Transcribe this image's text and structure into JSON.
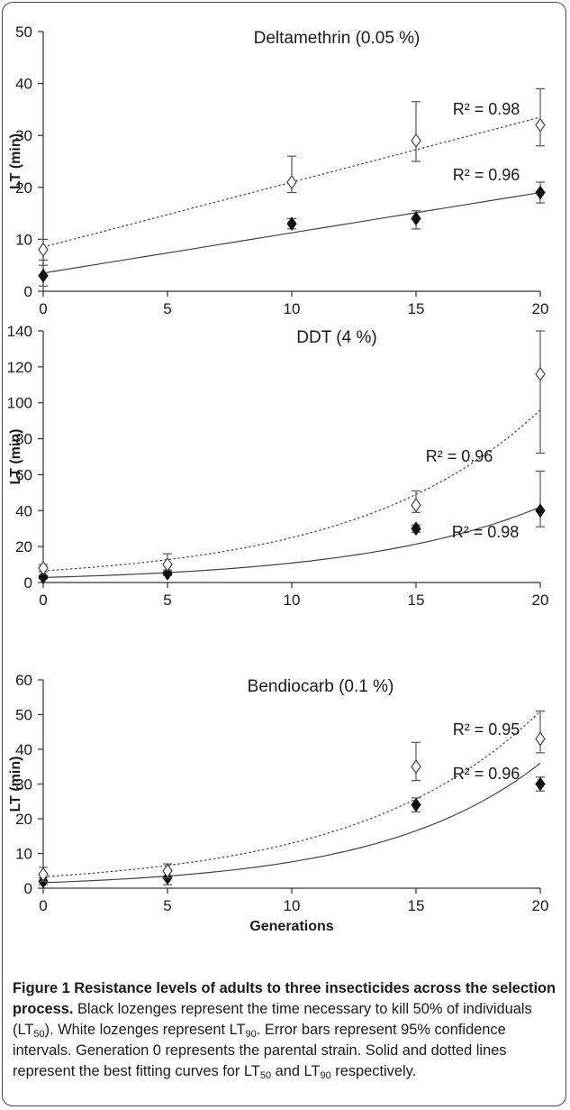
{
  "chart_data": [
    {
      "type": "scatter",
      "title": "Deltamethrin (0.05 %)",
      "ylabel": "LT (min)",
      "xlabel": "",
      "xlim": [
        0,
        20
      ],
      "ylim": [
        0,
        50
      ],
      "xticks": [
        0,
        5,
        10,
        15,
        20
      ],
      "yticks": [
        0,
        10,
        20,
        30,
        40,
        50
      ],
      "series": [
        {
          "marker": "filled-diamond",
          "line": "solid",
          "fit": "linear",
          "x": [
            0,
            10,
            15,
            20
          ],
          "values": [
            3,
            13,
            14,
            19
          ],
          "err_low": [
            1,
            12,
            12,
            17
          ],
          "err_high": [
            5,
            14,
            15.5,
            21
          ],
          "fit_start": 3.5,
          "fit_end": 19,
          "r2_label": "R² = 0.96"
        },
        {
          "marker": "open-diamond",
          "line": "dotted",
          "fit": "linear",
          "x": [
            0,
            10,
            15,
            20
          ],
          "values": [
            8,
            21,
            29,
            32
          ],
          "err_low": [
            6,
            19,
            25,
            28
          ],
          "err_high": [
            10,
            26,
            36.5,
            39
          ],
          "fit_start": 8.5,
          "fit_end": 33.5,
          "r2_label": "R² = 0.98"
        }
      ]
    },
    {
      "type": "scatter",
      "title": "DDT (4 %)",
      "ylabel": "LT (min)",
      "xlabel": "",
      "xlim": [
        0,
        20
      ],
      "ylim": [
        0,
        140
      ],
      "xticks": [
        0,
        5,
        10,
        15,
        20
      ],
      "yticks": [
        0,
        20,
        40,
        60,
        80,
        100,
        120,
        140
      ],
      "series": [
        {
          "marker": "filled-diamond",
          "line": "solid",
          "fit": "exponential",
          "x": [
            0,
            5,
            15,
            20
          ],
          "values": [
            3,
            5,
            30,
            40
          ],
          "err_low": [
            2,
            4,
            28,
            31
          ],
          "err_high": [
            4,
            6,
            32,
            62
          ],
          "fit_start": 2.8,
          "fit_end": 42,
          "r2_label": "R² = 0.98"
        },
        {
          "marker": "open-diamond",
          "line": "dotted",
          "fit": "exponential",
          "x": [
            0,
            5,
            15,
            20
          ],
          "values": [
            8,
            10,
            43,
            116
          ],
          "err_low": [
            6,
            7,
            39,
            72
          ],
          "err_high": [
            10,
            16,
            51,
            140
          ],
          "fit_start": 6.5,
          "fit_end": 96,
          "r2_label": "R² = 0.96"
        }
      ]
    },
    {
      "type": "scatter",
      "title": "Bendiocarb (0.1 %)",
      "ylabel": "LT (min)",
      "xlabel": "Generations",
      "xlim": [
        0,
        20
      ],
      "ylim": [
        0,
        60
      ],
      "xticks": [
        0,
        5,
        10,
        15,
        20
      ],
      "yticks": [
        0,
        10,
        20,
        30,
        40,
        50,
        60
      ],
      "series": [
        {
          "marker": "filled-diamond",
          "line": "solid",
          "fit": "exponential",
          "x": [
            0,
            5,
            15,
            20
          ],
          "values": [
            2,
            3,
            24,
            30
          ],
          "err_low": [
            1,
            1,
            22,
            28
          ],
          "err_high": [
            3,
            5,
            26,
            32
          ],
          "fit_start": 1.6,
          "fit_end": 36,
          "r2_label": "R² = 0.96"
        },
        {
          "marker": "open-diamond",
          "line": "dotted",
          "fit": "exponential",
          "x": [
            0,
            5,
            15,
            20
          ],
          "values": [
            4,
            5,
            35,
            43
          ],
          "err_low": [
            2,
            3,
            31,
            39
          ],
          "err_high": [
            6,
            7,
            42,
            51
          ],
          "fit_start": 3.3,
          "fit_end": 51,
          "r2_label": "R² = 0.95"
        }
      ]
    }
  ],
  "caption": {
    "title": "Figure 1 Resistance levels of adults to three insecticides across the selection process.",
    "text_1": " Black lozenges represent the time necessary to kill 50% of individuals (LT",
    "sub_1": "50",
    "text_2": "). White lozenges represent LT",
    "sub_2": "90",
    "text_3": ". Error bars represent 95% confidence intervals. Generation 0 represents the parental strain. Solid and dotted lines represent the best fitting curves for LT",
    "sub_3": "50",
    "text_4": " and LT",
    "sub_4": "90",
    "text_5": " respectively."
  }
}
